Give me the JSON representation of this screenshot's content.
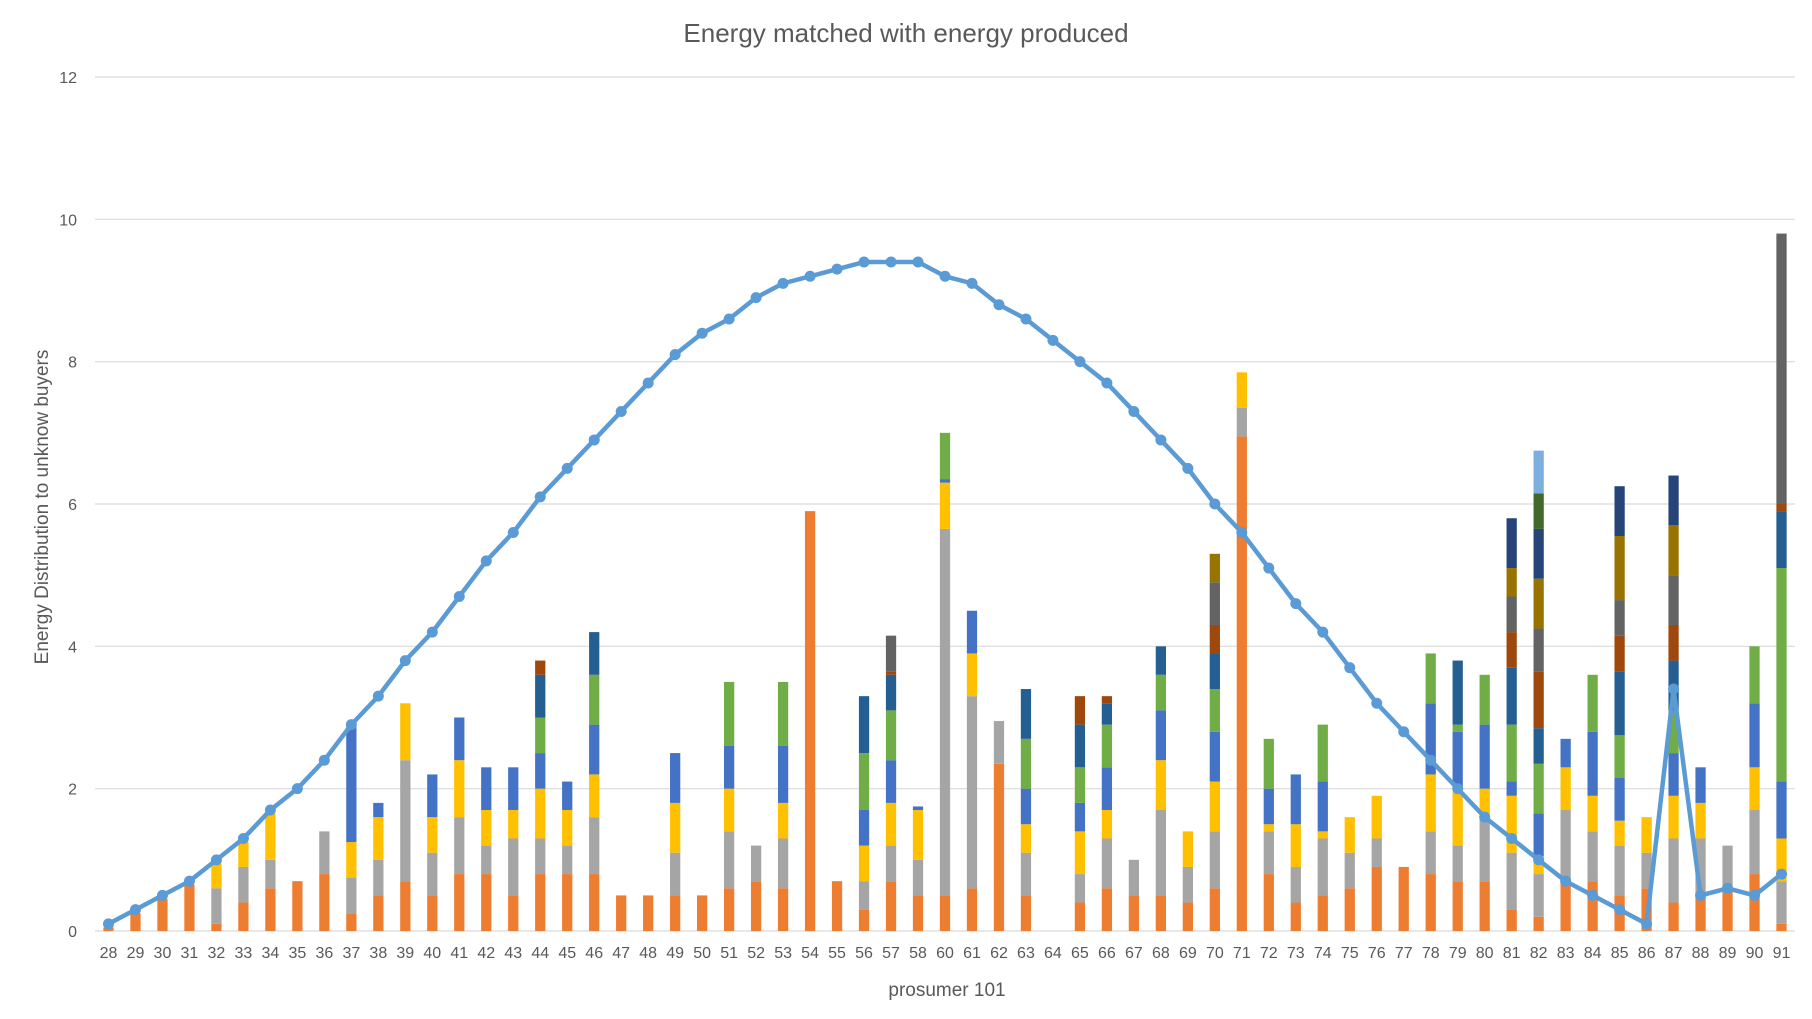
{
  "chart_data": {
    "type": "bar",
    "stacked": true,
    "title": "Energy matched with energy produced",
    "xlabel": "prosumer 101",
    "ylabel": "Energy Distribution to unknow buyers",
    "ylim": [
      0,
      12
    ],
    "yticks": [
      0,
      2,
      4,
      6,
      8,
      10,
      12
    ],
    "grid": true,
    "legend": "none",
    "categories": [
      "28",
      "29",
      "30",
      "31",
      "32",
      "33",
      "34",
      "35",
      "36",
      "37",
      "38",
      "39",
      "40",
      "41",
      "42",
      "43",
      "44",
      "45",
      "46",
      "47",
      "48",
      "49",
      "50",
      "51",
      "52",
      "53",
      "54",
      "55",
      "56",
      "57",
      "58",
      "60",
      "61",
      "62",
      "63",
      "64",
      "65",
      "66",
      "67",
      "68",
      "69",
      "70",
      "71",
      "72",
      "73",
      "74",
      "75",
      "76",
      "77",
      "78",
      "79",
      "80",
      "81",
      "82",
      "83",
      "84",
      "85",
      "86",
      "87",
      "88",
      "89",
      "90",
      "91"
    ],
    "series_colors": [
      "#ed7d31",
      "#a5a5a5",
      "#ffc000",
      "#4472c4",
      "#70ad47",
      "#255e91",
      "#9e480e",
      "#636363",
      "#997300",
      "#264478",
      "#43682b",
      "#7cafdd"
    ],
    "bar_segments": [
      [
        0.05
      ],
      [
        0.25
      ],
      [
        0.45
      ],
      [
        0.65
      ],
      [
        0.1,
        0.5,
        0.35
      ],
      [
        0.4,
        0.5,
        0.35
      ],
      [
        0.6,
        0.4,
        0.65
      ],
      [
        0.7
      ],
      [
        0.8,
        0.6
      ],
      [
        0.25,
        0.5,
        0.5,
        1.65
      ],
      [
        0.5,
        0.5,
        0.6,
        0.2
      ],
      [
        0.7,
        1.7,
        0.8
      ],
      [
        0.5,
        0.6,
        0.5,
        0.6
      ],
      [
        0.8,
        0.8,
        0.8,
        0.6
      ],
      [
        0.8,
        0.4,
        0.5,
        0.6
      ],
      [
        0.5,
        0.8,
        0.4,
        0.6
      ],
      [
        0.8,
        0.5,
        0.7,
        0.5,
        0.5,
        0.6,
        0.2
      ],
      [
        0.8,
        0.4,
        0.5,
        0.4
      ],
      [
        0.8,
        0.8,
        0.6,
        0.7,
        0.7,
        0.6
      ],
      [
        0.5
      ],
      [
        0.5
      ],
      [
        0.5,
        0.6,
        0.7,
        0.7
      ],
      [
        0.5
      ],
      [
        0.6,
        0.8,
        0.6,
        0.6,
        0.9
      ],
      [
        0.7,
        0.5
      ],
      [
        0.6,
        0.7,
        0.5,
        0.8,
        0.9
      ],
      [
        5.9
      ],
      [
        0.7
      ],
      [
        0.3,
        0.4,
        0.5,
        0.5,
        0.8,
        0.8
      ],
      [
        0.7,
        0.5,
        0.6,
        0.6,
        0.7,
        0.5,
        0.05,
        0.5
      ],
      [
        0.5,
        0.5,
        0.7,
        0.05
      ],
      [
        0.5,
        5.15,
        0.65,
        0.05,
        0.65
      ],
      [
        0.6,
        2.7,
        0.6,
        0.6
      ],
      [
        2.35,
        0.6
      ],
      [
        0.5,
        0.6,
        0.4,
        0.5,
        0.7,
        0.7
      ],
      [],
      [
        0.4,
        0.4,
        0.6,
        0.4,
        0.5,
        0.6,
        0.4
      ],
      [
        0.6,
        0.7,
        0.4,
        0.6,
        0.6,
        0.3,
        0.1
      ],
      [
        0.5,
        0.5
      ],
      [
        0.5,
        1.2,
        0.7,
        0.7,
        0.5,
        0.4
      ],
      [
        0.4,
        0.5,
        0.5
      ],
      [
        0.6,
        0.8,
        0.7,
        0.7,
        0.6,
        0.5,
        0.4,
        0.6,
        0.4
      ],
      [
        6.95,
        0.4,
        0.5
      ],
      [
        0.8,
        0.6,
        0.1,
        0.5,
        0.7
      ],
      [
        0.4,
        0.5,
        0.6,
        0.7
      ],
      [
        0.5,
        0.8,
        0.1,
        0.7,
        0.8
      ],
      [
        0.6,
        0.5,
        0.5
      ],
      [
        0.9,
        0.4,
        0.6
      ],
      [
        0.9
      ],
      [
        0.8,
        0.6,
        0.8,
        1.0,
        0.7
      ],
      [
        0.7,
        0.5,
        0.8,
        0.8,
        0.1,
        0.9
      ],
      [
        0.7,
        0.9,
        0.4,
        0.9,
        0.7
      ],
      [
        0.3,
        0.8,
        0.8,
        0.2,
        0.8,
        0.8,
        0.5,
        0.5,
        0.4,
        0.7
      ],
      [
        0.2,
        0.6,
        0.25,
        0.6,
        0.7,
        0.5,
        0.8,
        0.6,
        0.7,
        0.7,
        0.5,
        0.6
      ],
      [
        0.7,
        1.0,
        0.6,
        0.4
      ],
      [
        0.7,
        0.7,
        0.5,
        0.9,
        0.8
      ],
      [
        0.5,
        0.7,
        0.35,
        0.6,
        0.6,
        0.9,
        0.5,
        0.5,
        0.9,
        0.7
      ],
      [
        0.6,
        0.5,
        0.5
      ],
      [
        0.4,
        0.9,
        0.6,
        0.6,
        0.6,
        0.7,
        0.5,
        0.7,
        0.7,
        0.7
      ],
      [
        0.5,
        0.8,
        0.5,
        0.5
      ],
      [
        0.6,
        0.6
      ],
      [
        0.8,
        0.9,
        0.6,
        0.9,
        0.8
      ],
      [
        0.1,
        0.6,
        0.6,
        0.8,
        3.0,
        0.8,
        0.1,
        3.8
      ]
    ],
    "line_series": {
      "values": [
        0.1,
        0.3,
        0.5,
        0.7,
        1.0,
        1.3,
        1.7,
        2.0,
        2.4,
        2.9,
        3.3,
        3.8,
        4.2,
        4.7,
        5.2,
        5.6,
        6.1,
        6.5,
        6.9,
        7.3,
        7.7,
        8.1,
        8.4,
        8.6,
        8.9,
        9.1,
        9.2,
        9.3,
        9.4,
        9.4,
        9.4,
        9.2,
        9.1,
        8.8,
        8.6,
        8.3,
        8.0,
        7.7,
        7.3,
        6.9,
        6.5,
        6.0,
        5.6,
        5.1,
        4.6,
        4.2,
        3.7,
        3.2,
        2.8,
        2.4,
        2.0,
        1.6,
        1.3,
        1.0,
        0.7,
        0.5,
        0.3,
        0.1,
        3.4,
        0.5,
        0.6,
        0.5,
        0.8
      ],
      "color": "#5b9bd5"
    }
  }
}
